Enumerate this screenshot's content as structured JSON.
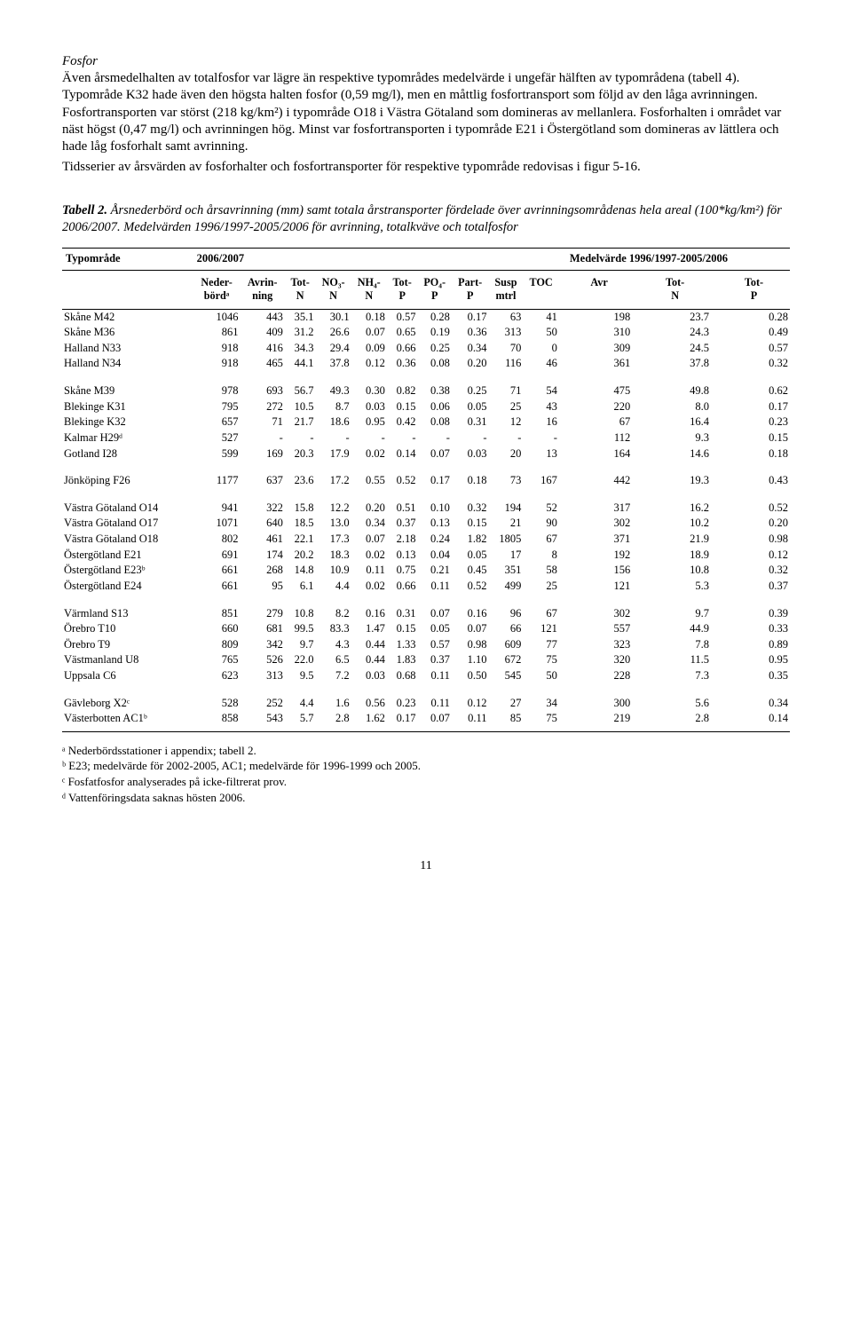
{
  "section_heading": "Fosfor",
  "para1": "Även årsmedelhalten av totalfosfor var lägre än respektive typområdes medelvärde i ungefär hälften av typområdena (tabell 4). Typområde K32 hade även den högsta halten fosfor (0,59 mg/l), men en måttlig fosfortransport som följd av den låga avrinningen. Fosfortransporten var störst (218 kg/km²) i typområde O18 i Västra Götaland som domineras av mellanlera. Fosforhalten i området var näst högst (0,47 mg/l) och avrinningen hög. Minst var fosfortransporten i typområde E21 i Östergötland som domineras av lättlera och hade låg fosforhalt samt avrinning.",
  "para2": "Tidsserier av årsvärden av fosforhalter och fosfortransporter för respektive typområde redovisas i figur 5-16.",
  "table_caption_strong": "Tabell 2.",
  "table_caption": " Årsnederbörd och årsavrinning (mm) samt totala årstransporter fördelade över avrinningsområdenas hela areal (100*kg/km²) för 2006/2007. Medelvärden 1996/1997-2005/2006 för avrinning, totalkväve och totalfosfor",
  "head_left": "Typområde",
  "head_mid": "2006/2007",
  "head_right": "Medelvärde 1996/1997-2005/2006",
  "subheads": [
    "",
    "Neder-\nbördᵃ",
    "Avrin-\nning",
    "Tot-\nN",
    "NO₃-\nN",
    "NH₄-\nN",
    "Tot-\nP",
    "PO₄-\nP",
    "Part-\nP",
    "Susp\nmtrl",
    "TOC",
    "Avr",
    "Tot-\nN",
    "Tot-\nP"
  ],
  "groups": [
    [
      [
        "Skåne M42",
        "1046",
        "443",
        "35.1",
        "30.1",
        "0.18",
        "0.57",
        "0.28",
        "0.17",
        "63",
        "41",
        "198",
        "23.7",
        "0.28"
      ],
      [
        "Skåne M36",
        "861",
        "409",
        "31.2",
        "26.6",
        "0.07",
        "0.65",
        "0.19",
        "0.36",
        "313",
        "50",
        "310",
        "24.3",
        "0.49"
      ],
      [
        "Halland N33",
        "918",
        "416",
        "34.3",
        "29.4",
        "0.09",
        "0.66",
        "0.25",
        "0.34",
        "70",
        "0",
        "309",
        "24.5",
        "0.57"
      ],
      [
        "Halland N34",
        "918",
        "465",
        "44.1",
        "37.8",
        "0.12",
        "0.36",
        "0.08",
        "0.20",
        "116",
        "46",
        "361",
        "37.8",
        "0.32"
      ]
    ],
    [
      [
        "Skåne M39",
        "978",
        "693",
        "56.7",
        "49.3",
        "0.30",
        "0.82",
        "0.38",
        "0.25",
        "71",
        "54",
        "475",
        "49.8",
        "0.62"
      ],
      [
        "Blekinge K31",
        "795",
        "272",
        "10.5",
        "8.7",
        "0.03",
        "0.15",
        "0.06",
        "0.05",
        "25",
        "43",
        "220",
        "8.0",
        "0.17"
      ],
      [
        "Blekinge K32",
        "657",
        "71",
        "21.7",
        "18.6",
        "0.95",
        "0.42",
        "0.08",
        "0.31",
        "12",
        "16",
        "67",
        "16.4",
        "0.23"
      ],
      [
        "Kalmar H29ᵈ",
        "527",
        "-",
        "-",
        "-",
        "-",
        "-",
        "-",
        "-",
        "-",
        "-",
        "112",
        "9.3",
        "0.15"
      ],
      [
        "Gotland I28",
        "599",
        "169",
        "20.3",
        "17.9",
        "0.02",
        "0.14",
        "0.07",
        "0.03",
        "20",
        "13",
        "164",
        "14.6",
        "0.18"
      ]
    ],
    [
      [
        "Jönköping F26",
        "1177",
        "637",
        "23.6",
        "17.2",
        "0.55",
        "0.52",
        "0.17",
        "0.18",
        "73",
        "167",
        "442",
        "19.3",
        "0.43"
      ]
    ],
    [
      [
        "Västra Götaland O14",
        "941",
        "322",
        "15.8",
        "12.2",
        "0.20",
        "0.51",
        "0.10",
        "0.32",
        "194",
        "52",
        "317",
        "16.2",
        "0.52"
      ],
      [
        "Västra Götaland O17",
        "1071",
        "640",
        "18.5",
        "13.0",
        "0.34",
        "0.37",
        "0.13",
        "0.15",
        "21",
        "90",
        "302",
        "10.2",
        "0.20"
      ],
      [
        "Västra Götaland O18",
        "802",
        "461",
        "22.1",
        "17.3",
        "0.07",
        "2.18",
        "0.24",
        "1.82",
        "1805",
        "67",
        "371",
        "21.9",
        "0.98"
      ],
      [
        "Östergötland E21",
        "691",
        "174",
        "20.2",
        "18.3",
        "0.02",
        "0.13",
        "0.04",
        "0.05",
        "17",
        "8",
        "192",
        "18.9",
        "0.12"
      ],
      [
        "Östergötland E23ᵇ",
        "661",
        "268",
        "14.8",
        "10.9",
        "0.11",
        "0.75",
        "0.21",
        "0.45",
        "351",
        "58",
        "156",
        "10.8",
        "0.32"
      ],
      [
        "Östergötland E24",
        "661",
        "95",
        "6.1",
        "4.4",
        "0.02",
        "0.66",
        "0.11",
        "0.52",
        "499",
        "25",
        "121",
        "5.3",
        "0.37"
      ]
    ],
    [
      [
        "Värmland S13",
        "851",
        "279",
        "10.8",
        "8.2",
        "0.16",
        "0.31",
        "0.07",
        "0.16",
        "96",
        "67",
        "302",
        "9.7",
        "0.39"
      ],
      [
        "Örebro T10",
        "660",
        "681",
        "99.5",
        "83.3",
        "1.47",
        "0.15",
        "0.05",
        "0.07",
        "66",
        "121",
        "557",
        "44.9",
        "0.33"
      ],
      [
        "Örebro T9",
        "809",
        "342",
        "9.7",
        "4.3",
        "0.44",
        "1.33",
        "0.57",
        "0.98",
        "609",
        "77",
        "323",
        "7.8",
        "0.89"
      ],
      [
        "Västmanland U8",
        "765",
        "526",
        "22.0",
        "6.5",
        "0.44",
        "1.83",
        "0.37",
        "1.10",
        "672",
        "75",
        "320",
        "11.5",
        "0.95"
      ],
      [
        "Uppsala C6",
        "623",
        "313",
        "9.5",
        "7.2",
        "0.03",
        "0.68",
        "0.11",
        "0.50",
        "545",
        "50",
        "228",
        "7.3",
        "0.35"
      ]
    ],
    [
      [
        "Gävleborg X2ᶜ",
        "528",
        "252",
        "4.4",
        "1.6",
        "0.56",
        "0.23",
        "0.11",
        "0.12",
        "27",
        "34",
        "300",
        "5.6",
        "0.34"
      ],
      [
        "Västerbotten AC1ᵇ",
        "858",
        "543",
        "5.7",
        "2.8",
        "1.62",
        "0.17",
        "0.07",
        "0.11",
        "85",
        "75",
        "219",
        "2.8",
        "0.14"
      ]
    ]
  ],
  "footnotes": [
    "ᵃ Nederbördsstationer i appendix; tabell 2.",
    "ᵇ E23; medelvärde för 2002-2005, AC1; medelvärde för 1996-1999 och 2005.",
    "ᶜ Fosfatfosfor analyserades på icke-filtrerat prov.",
    "ᵈ Vattenföringsdata saknas hösten 2006."
  ],
  "page_number": "11"
}
